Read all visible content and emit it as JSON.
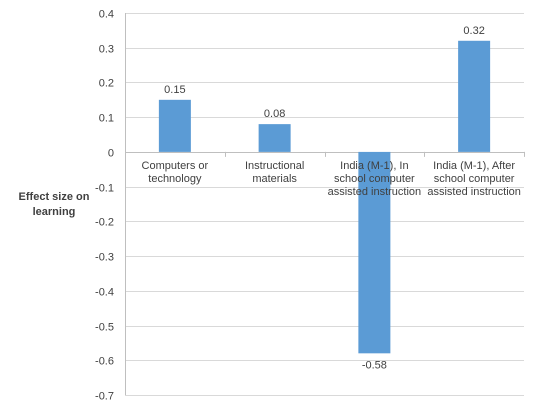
{
  "chart_data": {
    "type": "bar",
    "ylabel": [
      "Effect size on",
      "learning"
    ],
    "categories": [
      [
        "Computers or",
        "technology"
      ],
      [
        "Instructional",
        "materials"
      ],
      [
        "India (M-1), In",
        "school computer",
        "assisted instruction"
      ],
      [
        "India (M-1), After",
        "school computer",
        "assisted instruction"
      ]
    ],
    "values": [
      0.15,
      0.08,
      -0.58,
      0.32
    ],
    "data_labels": [
      "0.15",
      "0.08",
      "-0.58",
      "0.32"
    ],
    "ylim": [
      -0.7,
      0.4
    ],
    "yticks": [
      0.4,
      0.3,
      0.2,
      0.1,
      0,
      -0.1,
      -0.2,
      -0.3,
      -0.4,
      -0.5,
      -0.6,
      -0.7
    ],
    "ytick_labels": [
      "0.4",
      "0.3",
      "0.2",
      "0.1",
      "0",
      "-0.1",
      "-0.2",
      "-0.3",
      "-0.4",
      "-0.5",
      "-0.6",
      "-0.7"
    ],
    "grid": true,
    "legend": "none",
    "colors": {
      "bar": "#5b9bd5",
      "grid": "#d9d9d9",
      "axis": "#bfbfbf",
      "text": "#404040"
    }
  }
}
